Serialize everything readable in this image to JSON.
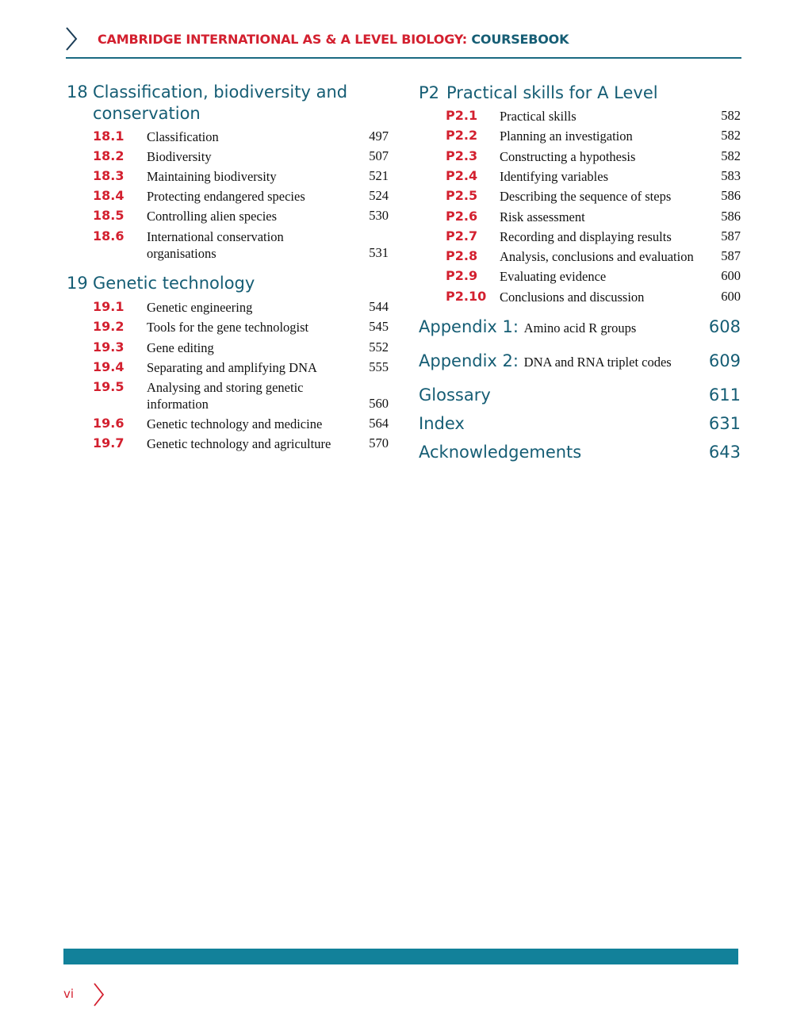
{
  "header": {
    "title_red": "CAMBRIDGE INTERNATIONAL AS & A LEVEL BIOLOGY:",
    "title_teal": " COURSEBOOK",
    "icon": "chevron-right-icon"
  },
  "left": {
    "chapters": [
      {
        "number": "18",
        "title_lines": [
          "Classification, biodiversity and",
          "conservation"
        ],
        "sections": [
          {
            "num": "18.1",
            "title": [
              "Classification"
            ],
            "page": "497"
          },
          {
            "num": "18.2",
            "title": [
              "Biodiversity"
            ],
            "page": "507"
          },
          {
            "num": "18.3",
            "title": [
              "Maintaining biodiversity"
            ],
            "page": "521"
          },
          {
            "num": "18.4",
            "title": [
              "Protecting endangered species"
            ],
            "page": "524"
          },
          {
            "num": "18.5",
            "title": [
              "Controlling alien species"
            ],
            "page": "530"
          },
          {
            "num": "18.6",
            "title": [
              "International conservation",
              "organisations"
            ],
            "page": "531"
          }
        ]
      },
      {
        "number": "19",
        "title_lines": [
          "Genetic technology"
        ],
        "sections": [
          {
            "num": "19.1",
            "title": [
              "Genetic engineering"
            ],
            "page": "544"
          },
          {
            "num": "19.2",
            "title": [
              "Tools for the gene technologist"
            ],
            "page": "545"
          },
          {
            "num": "19.3",
            "title": [
              "Gene editing"
            ],
            "page": "552"
          },
          {
            "num": "19.4",
            "title": [
              "Separating and amplifying DNA"
            ],
            "page": "555"
          },
          {
            "num": "19.5",
            "title": [
              "Analysing and storing genetic",
              "information"
            ],
            "page": "560"
          },
          {
            "num": "19.6",
            "title": [
              "Genetic technology and medicine"
            ],
            "page": "564"
          },
          {
            "num": "19.7",
            "title": [
              "Genetic technology and agriculture"
            ],
            "page": "570"
          }
        ]
      }
    ]
  },
  "right": {
    "chapter": {
      "number": "P2",
      "title": "Practical skills for A Level",
      "sections": [
        {
          "num": "P2.1",
          "title": "Practical skills",
          "page": "582"
        },
        {
          "num": "P2.2",
          "title": "Planning an investigation",
          "page": "582"
        },
        {
          "num": "P2.3",
          "title": "Constructing a hypothesis",
          "page": "582"
        },
        {
          "num": "P2.4",
          "title": "Identifying variables",
          "page": "583"
        },
        {
          "num": "P2.5",
          "title": "Describing the sequence of steps",
          "page": "586"
        },
        {
          "num": "P2.6",
          "title": "Risk assessment",
          "page": "586"
        },
        {
          "num": "P2.7",
          "title": "Recording and displaying results",
          "page": "587"
        },
        {
          "num": "P2.8",
          "title": "Analysis, conclusions and evaluation",
          "page": "587"
        },
        {
          "num": "P2.9",
          "title": "Evaluating evidence",
          "page": "600"
        },
        {
          "num": "P2.10",
          "title": "Conclusions and discussion",
          "page": "600"
        }
      ]
    },
    "back_matter": [
      {
        "label": "Appendix 1:",
        "subtitle": "Amino acid R groups",
        "page": "608"
      },
      {
        "label": "Appendix 2:",
        "subtitle": "DNA and RNA triplet codes",
        "page": "609"
      },
      {
        "label": "Glossary",
        "subtitle": "",
        "page": "611"
      },
      {
        "label": "Index",
        "subtitle": "",
        "page": "631"
      },
      {
        "label": "Acknowledgements",
        "subtitle": "",
        "page": "643"
      }
    ]
  },
  "footer": {
    "page_number": "vi",
    "icon": "chevron-right-icon",
    "bar_color": "#12819a"
  },
  "colors": {
    "accent_red": "#d3202f",
    "heading_teal": "#155d74"
  }
}
